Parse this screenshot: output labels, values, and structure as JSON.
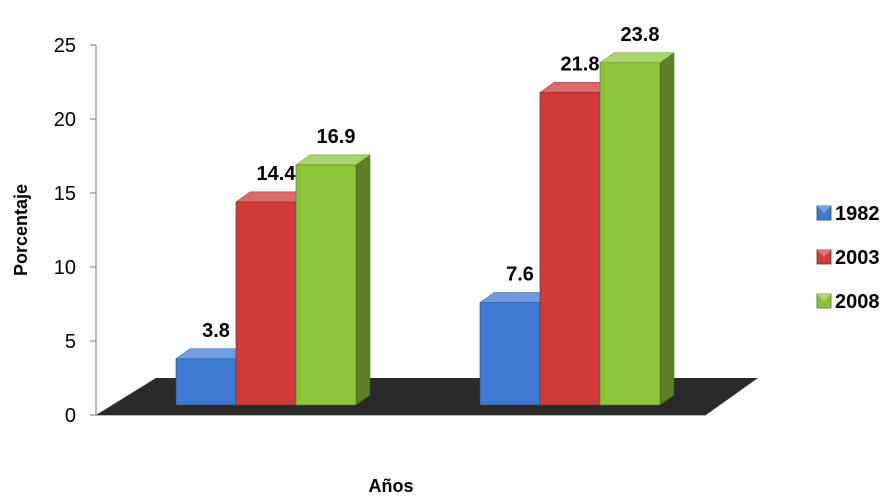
{
  "chart_data": {
    "type": "bar",
    "categories": [
      "",
      ""
    ],
    "series": [
      {
        "name": "1982",
        "values": [
          3.8,
          7.6
        ],
        "color": "#3d7bd0"
      },
      {
        "name": "2003",
        "values": [
          14.4,
          21.8
        ],
        "color": "#cf3a3a"
      },
      {
        "name": "2008",
        "values": [
          16.9,
          23.8
        ],
        "color": "#8cc43a"
      }
    ],
    "xlabel": "Años",
    "ylabel": "Porcentaje",
    "ylim": [
      0,
      25
    ],
    "yticks": [
      0,
      5,
      10,
      15,
      20,
      25
    ],
    "legend_position": "right",
    "floor_color": "#2a2a2a",
    "grid": false
  }
}
